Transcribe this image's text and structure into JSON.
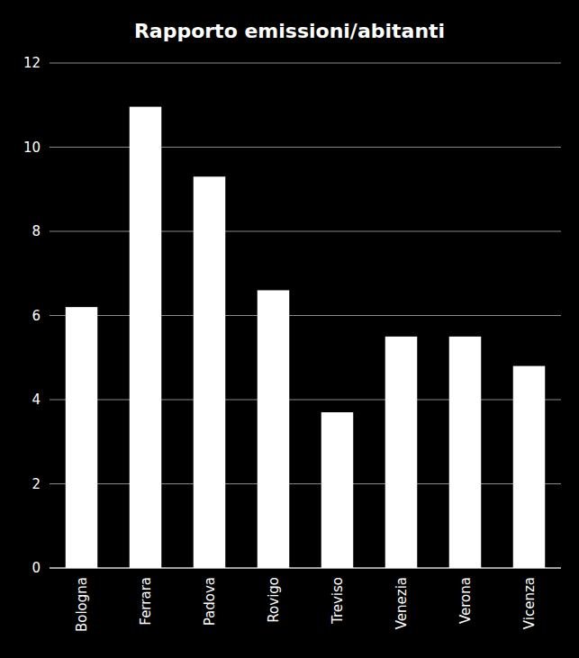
{
  "chart_data": {
    "type": "bar",
    "title": "Rapporto emissioni/abitanti",
    "categories": [
      "Bologna",
      "Ferrara",
      "Padova",
      "Rovigo",
      "Treviso",
      "Venezia",
      "Verona",
      "Vicenza"
    ],
    "values": [
      6.2,
      10.96,
      9.3,
      6.6,
      3.7,
      5.5,
      5.5,
      4.8
    ],
    "color": "#ffffff",
    "ylim": [
      0,
      12
    ],
    "yticks": [
      0,
      2,
      4,
      6,
      8,
      10,
      12
    ],
    "grid": true
  }
}
